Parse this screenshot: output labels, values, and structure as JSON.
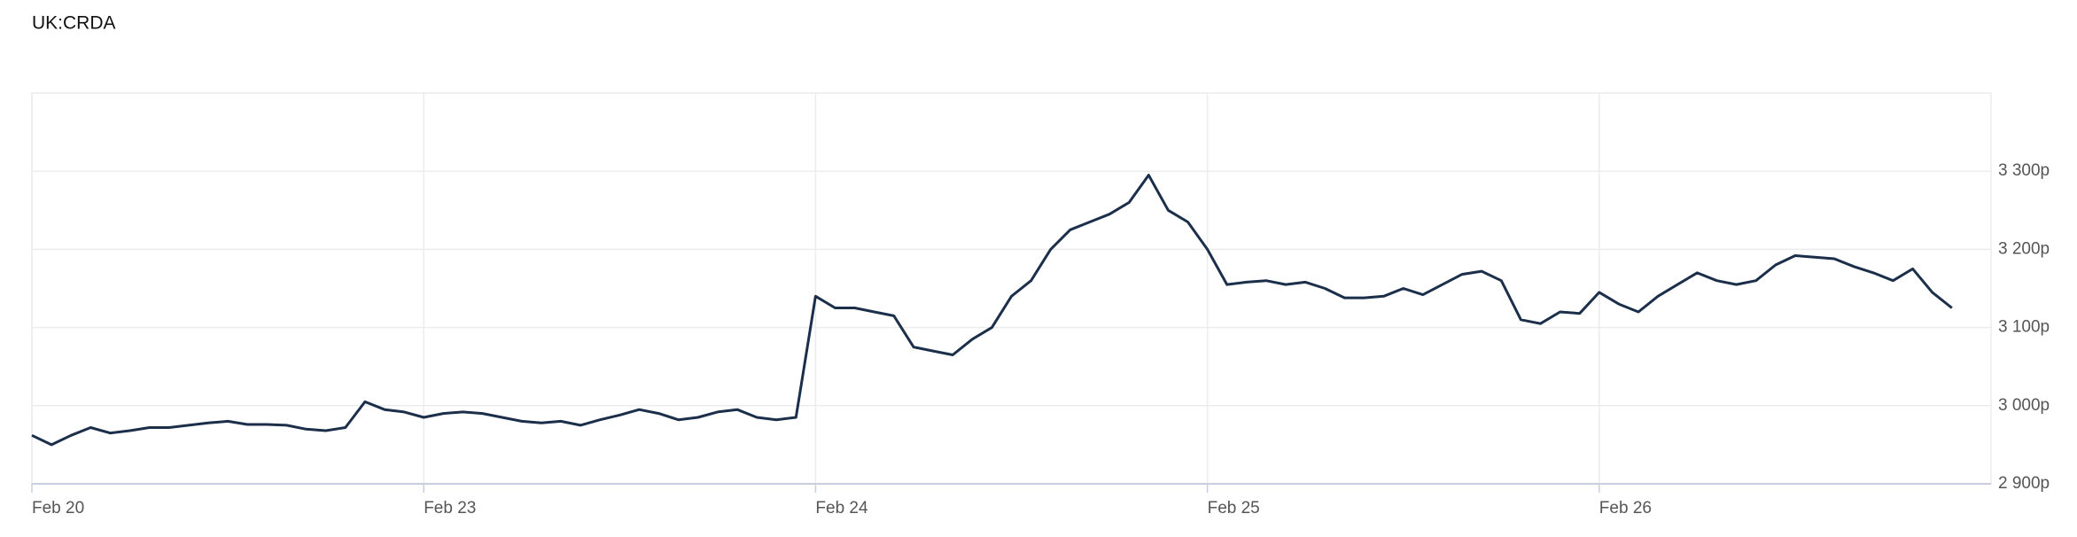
{
  "chart_data": {
    "type": "line",
    "title": "UK:CRDA",
    "categories": [
      "Feb 20",
      null,
      null,
      null,
      null,
      null,
      null,
      null,
      null,
      null,
      null,
      null,
      null,
      null,
      null,
      null,
      null,
      null,
      null,
      null,
      "Feb 23",
      null,
      null,
      null,
      null,
      null,
      null,
      null,
      null,
      null,
      null,
      null,
      null,
      null,
      null,
      null,
      null,
      null,
      null,
      null,
      "Feb 24",
      null,
      null,
      null,
      null,
      null,
      null,
      null,
      null,
      null,
      null,
      null,
      null,
      null,
      null,
      null,
      null,
      null,
      null,
      null,
      "Feb 25",
      null,
      null,
      null,
      null,
      null,
      null,
      null,
      null,
      null,
      null,
      null,
      null,
      null,
      null,
      null,
      null,
      null,
      null,
      null,
      "Feb 26",
      null,
      null,
      null,
      null,
      null,
      null,
      null,
      null,
      null,
      null,
      null,
      null,
      null,
      null,
      null,
      null,
      null,
      null
    ],
    "series": [
      {
        "name": "UK:CRDA",
        "color": "#1b2f4a",
        "values": [
          2962,
          2950,
          2962,
          2972,
          2965,
          2968,
          2972,
          2972,
          2975,
          2978,
          2980,
          2976,
          2976,
          2975,
          2970,
          2968,
          2972,
          3005,
          2995,
          2992,
          2985,
          2990,
          2992,
          2990,
          2985,
          2980,
          2978,
          2980,
          2975,
          2982,
          2988,
          2995,
          2990,
          2982,
          2985,
          2992,
          2995,
          2985,
          2982,
          2985,
          3140,
          3125,
          3125,
          3120,
          3115,
          3075,
          3070,
          3065,
          3085,
          3100,
          3140,
          3160,
          3200,
          3225,
          3235,
          3245,
          3260,
          3295,
          3250,
          3235,
          3200,
          3155,
          3158,
          3160,
          3155,
          3158,
          3150,
          3138,
          3138,
          3140,
          3150,
          3142,
          3155,
          3168,
          3172,
          3160,
          3110,
          3105,
          3120,
          3118,
          3145,
          3130,
          3120,
          3140,
          3155,
          3170,
          3160,
          3155,
          3160,
          3180,
          3192,
          3190,
          3188,
          3178,
          3170,
          3160,
          3175,
          3145,
          3125
        ]
      }
    ],
    "ylim": [
      2900,
      3400
    ],
    "yticks": [
      {
        "value": 2900,
        "label": "2 900p"
      },
      {
        "value": 3000,
        "label": "3 000p"
      },
      {
        "value": 3100,
        "label": "3 100p"
      },
      {
        "value": 3200,
        "label": "3 200p"
      },
      {
        "value": 3300,
        "label": "3 300p"
      }
    ],
    "grid": true
  }
}
